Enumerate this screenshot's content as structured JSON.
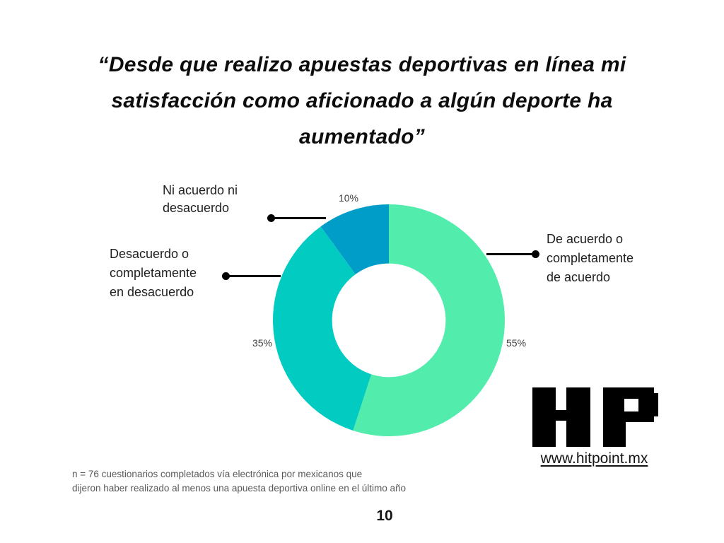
{
  "title": "“Desde que realizo apuestas deportivas en línea mi satisfacción como aficionado a algún deporte ha aumentado”",
  "chart_data": {
    "type": "pie",
    "subtype": "donut",
    "title": "“Desde que realizo apuestas deportivas en línea mi satisfacción como aficionado a algún deporte ha aumentado”",
    "labels": [
      "De acuerdo o completamente de acuerdo",
      "Desacuerdo o completamente en desacuerdo",
      "Ni acuerdo ni desacuerdo"
    ],
    "values": [
      55,
      35,
      10
    ],
    "display_values": [
      "55%",
      "35%",
      "10%"
    ],
    "colors": [
      "#52EDAC",
      "#02CBC1",
      "#019DC9"
    ],
    "start_angle_deg": 0,
    "direction": "clockwise",
    "inner_radius_ratio": 0.49,
    "legend_position": "callout-labels",
    "callout_labels": {
      "agree": "De acuerdo o\ncompletamente\nde acuerdo",
      "disagree": "Desacuerdo o\ncompletamente\nen desacuerdo",
      "neutral": "Ni acuerdo ni\ndesacuerdo"
    }
  },
  "footnote": "n = 76 cuestionarios completados vía electrónica por mexicanos que\ndijeron haber realizado al menos una apuesta deportiva online en el último año",
  "logo": {
    "name": "HP",
    "website": "www.hitpoint.mx"
  },
  "page_number": "10"
}
